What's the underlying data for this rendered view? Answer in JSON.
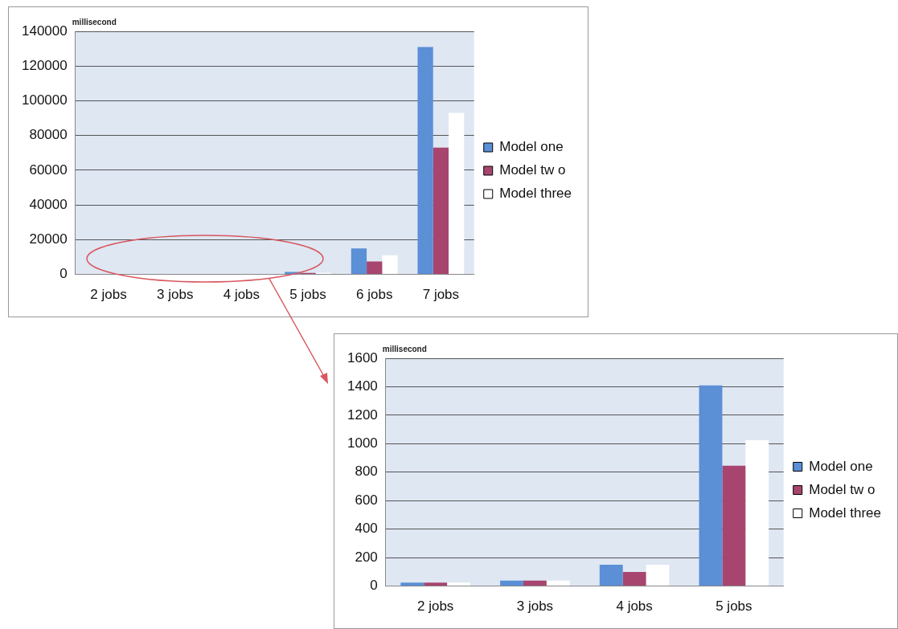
{
  "chart_data": [
    {
      "type": "bar",
      "ylabel": "millisecond",
      "categories": [
        "2 jobs",
        "3 jobs",
        "4 jobs",
        "5 jobs",
        "6 jobs",
        "7 jobs"
      ],
      "series": [
        {
          "name": "Model one",
          "color": "#5b8fd6",
          "values": [
            0,
            0,
            0,
            1400,
            15000,
            131000
          ]
        },
        {
          "name": "Model tw o",
          "color": "#a8456f",
          "values": [
            0,
            0,
            0,
            800,
            7500,
            73000
          ]
        },
        {
          "name": "Model three",
          "color": "#ffffff",
          "values": [
            0,
            0,
            0,
            1000,
            11000,
            93000
          ]
        }
      ],
      "ylim": [
        0,
        140000
      ],
      "yticks": [
        0,
        20000,
        40000,
        60000,
        80000,
        100000,
        120000,
        140000
      ],
      "grid": "y",
      "legend": "right"
    },
    {
      "type": "bar",
      "ylabel": "millisecond",
      "categories": [
        "2 jobs",
        "3 jobs",
        "4 jobs",
        "5 jobs"
      ],
      "series": [
        {
          "name": "Model one",
          "color": "#5b8fd6",
          "values": [
            25,
            38,
            150,
            1410
          ]
        },
        {
          "name": "Model tw o",
          "color": "#a8456f",
          "values": [
            25,
            38,
            100,
            845
          ]
        },
        {
          "name": "Model three",
          "color": "#ffffff",
          "values": [
            25,
            38,
            150,
            1025
          ]
        }
      ],
      "ylim": [
        0,
        1600
      ],
      "yticks": [
        0,
        200,
        400,
        600,
        800,
        1000,
        1200,
        1400,
        1600
      ],
      "grid": "y",
      "legend": "right"
    }
  ]
}
